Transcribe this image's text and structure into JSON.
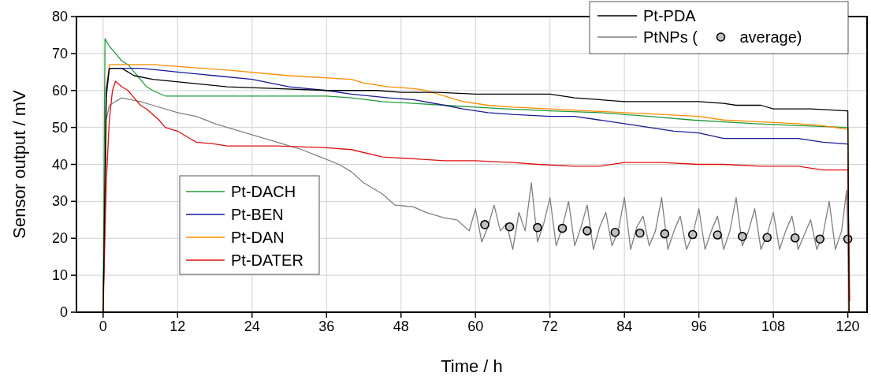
{
  "chart_data": {
    "type": "line",
    "xlabel": "Time / h",
    "ylabel": "Sensor output / mV",
    "xlim": [
      -4.3,
      123.1
    ],
    "ylim": [
      0,
      80
    ],
    "xticks": [
      0,
      12,
      24,
      36,
      48,
      60,
      72,
      84,
      96,
      108,
      120
    ],
    "yticks": [
      0,
      10,
      20,
      30,
      40,
      50,
      60,
      70,
      80
    ],
    "grid": true,
    "legend": "top right",
    "series": [
      {
        "name": "Pt-PDA",
        "color": "#000000",
        "x": [
          0,
          0.5,
          1,
          3,
          5,
          8,
          14,
          20,
          28,
          36,
          44,
          48,
          54,
          60,
          66,
          72,
          76,
          80,
          84,
          90,
          96,
          100,
          102,
          106,
          108,
          114,
          119.8,
          120,
          120.2
        ],
        "values": [
          0,
          60,
          66,
          66,
          64,
          63,
          62,
          61,
          60.5,
          60,
          60,
          59.5,
          59.5,
          59,
          59,
          59,
          58,
          57.5,
          57,
          57,
          57,
          56.5,
          56,
          56,
          55,
          55,
          54.5,
          54.5,
          0
        ]
      },
      {
        "name": "PtNPs (",
        "color": "#808080",
        "x": [
          0,
          0.5,
          1,
          3,
          6,
          8,
          12,
          15,
          18,
          20,
          23,
          26,
          29,
          32,
          35,
          38,
          40,
          42,
          45,
          47,
          50,
          52,
          55,
          57,
          59,
          60,
          61,
          62,
          63,
          64,
          65,
          66,
          67,
          68,
          69,
          70,
          71,
          72,
          73,
          74,
          75,
          76,
          77,
          78,
          79,
          80,
          81,
          82,
          83,
          84,
          85,
          86,
          87,
          88,
          89,
          90,
          91,
          92,
          93,
          94,
          95,
          96,
          97,
          98,
          99,
          100,
          101,
          102,
          103,
          104,
          105,
          106,
          107,
          108,
          109,
          110,
          111,
          112,
          113,
          114,
          115,
          116,
          117,
          118,
          119,
          119.8,
          120,
          120.2
        ],
        "values": [
          0,
          52,
          56,
          58,
          57,
          56,
          54,
          53,
          51,
          50,
          48.5,
          47,
          45.5,
          44,
          42,
          40,
          38,
          35,
          32,
          29,
          28.5,
          27,
          25.5,
          25,
          22,
          28,
          19,
          23,
          29,
          22,
          24,
          17,
          27,
          22,
          35,
          19,
          24,
          31,
          18,
          23,
          30,
          18,
          23,
          29,
          17,
          23,
          27,
          18,
          22,
          31,
          17,
          23,
          26,
          18,
          22,
          31,
          17,
          22,
          26,
          17,
          21,
          28,
          17,
          22,
          26,
          17,
          22,
          31,
          18,
          22,
          28,
          17,
          21,
          27,
          17,
          22,
          26,
          17,
          21,
          25,
          17,
          21,
          30,
          17,
          22,
          33,
          20,
          0
        ]
      },
      {
        "name": "average)",
        "type": "scatter",
        "marker": "circle",
        "color": "#c0c0c0",
        "x": [
          61.5,
          65.5,
          70,
          74,
          78,
          82.5,
          86.5,
          90.5,
          95,
          99,
          103,
          107,
          111.5,
          115.5,
          120
        ],
        "values": [
          23.7,
          23.1,
          22.9,
          22.7,
          22,
          21.6,
          21.4,
          21.2,
          21,
          20.9,
          20.5,
          20.2,
          20.1,
          19.8,
          19.8
        ]
      },
      {
        "name": "Pt-DACH",
        "color": "#1f9a3a",
        "x": [
          0,
          0.3,
          1,
          2,
          3,
          4,
          5,
          6,
          7,
          8,
          10,
          20,
          36,
          40,
          45,
          50,
          55,
          60,
          65,
          72,
          80,
          88,
          95,
          100,
          105,
          112,
          119.8,
          120,
          120.2
        ],
        "values": [
          0,
          74,
          72,
          70,
          68,
          67,
          65,
          63,
          61,
          60,
          58.5,
          58.5,
          58.5,
          58,
          57,
          56.5,
          56,
          55.5,
          55,
          54.5,
          54,
          53,
          52,
          51.5,
          51,
          50.5,
          50,
          50,
          0
        ]
      },
      {
        "name": "Pt-BEN",
        "color": "#1a1a9a",
        "x": [
          0,
          0.5,
          1,
          3,
          6,
          9,
          12,
          18,
          24,
          30,
          36,
          40,
          46,
          50,
          55,
          58,
          62,
          66,
          72,
          76,
          80,
          84,
          88,
          92,
          96,
          100,
          106,
          112,
          116,
          119.8,
          120,
          120.2
        ],
        "values": [
          0,
          58,
          66,
          66,
          66,
          65.5,
          65,
          64,
          63,
          61,
          60,
          59,
          58,
          57.5,
          56,
          55,
          54,
          53.5,
          53,
          53,
          52,
          51,
          50,
          49,
          48.5,
          47,
          47,
          47,
          46,
          45.5,
          45.5,
          0
        ]
      },
      {
        "name": "Pt-DAN",
        "color": "#ff8c00",
        "x": [
          0,
          0.5,
          1,
          4,
          8,
          20,
          30,
          40,
          42,
          46,
          50,
          52,
          56,
          58,
          62,
          66,
          72,
          78,
          84,
          90,
          96,
          100,
          106,
          112,
          116,
          119.8,
          120,
          120.2
        ],
        "values": [
          0,
          60,
          67,
          67,
          67,
          65.5,
          64,
          63,
          62,
          61,
          60.5,
          60,
          58,
          57,
          56,
          55.5,
          55,
          54.5,
          54,
          53.5,
          53,
          52,
          51.5,
          51,
          50.5,
          49.5,
          49.5,
          0
        ]
      },
      {
        "name": "Pt-DATER",
        "color": "#e01010",
        "x": [
          0,
          0.5,
          1,
          1.5,
          2,
          3,
          4,
          5,
          6,
          7,
          8,
          9,
          10,
          12,
          14,
          15,
          18,
          20,
          28,
          36,
          40,
          45,
          50,
          55,
          60,
          66,
          70,
          76,
          80,
          84,
          90,
          96,
          100,
          106,
          112,
          116,
          119.8,
          120,
          120.3
        ],
        "values": [
          0,
          35,
          52,
          60,
          62.5,
          61,
          60,
          58,
          56,
          55,
          53.5,
          52,
          50,
          49,
          47,
          46,
          45.5,
          45,
          45,
          44.5,
          44,
          42,
          41.5,
          41,
          41,
          40.5,
          40,
          39.5,
          39.5,
          40.5,
          40.5,
          40,
          40,
          39.5,
          39.5,
          38.5,
          38.5,
          38.5,
          3
        ]
      }
    ]
  }
}
